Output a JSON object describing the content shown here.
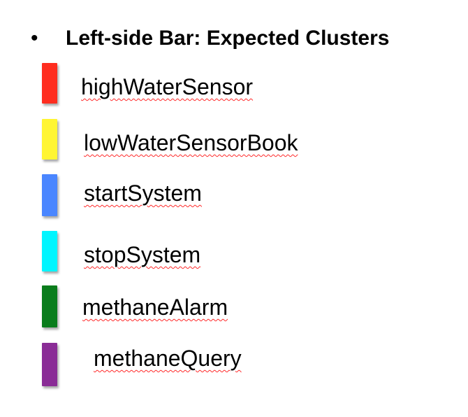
{
  "heading": {
    "bullet": "•",
    "text": "Left-side Bar: Expected Clusters"
  },
  "legend": {
    "items": [
      {
        "label": "highWaterSensor",
        "color": "#ff2d1f"
      },
      {
        "label": "lowWaterSensorBook",
        "color": "#fff533"
      },
      {
        "label": "startSystem",
        "color": "#4a86ff"
      },
      {
        "label": "stopSystem",
        "color": "#00f5ff"
      },
      {
        "label": "methaneAlarm",
        "color": "#0a7d1c"
      },
      {
        "label": "methaneQuery",
        "color": "#8a2c96"
      }
    ]
  }
}
